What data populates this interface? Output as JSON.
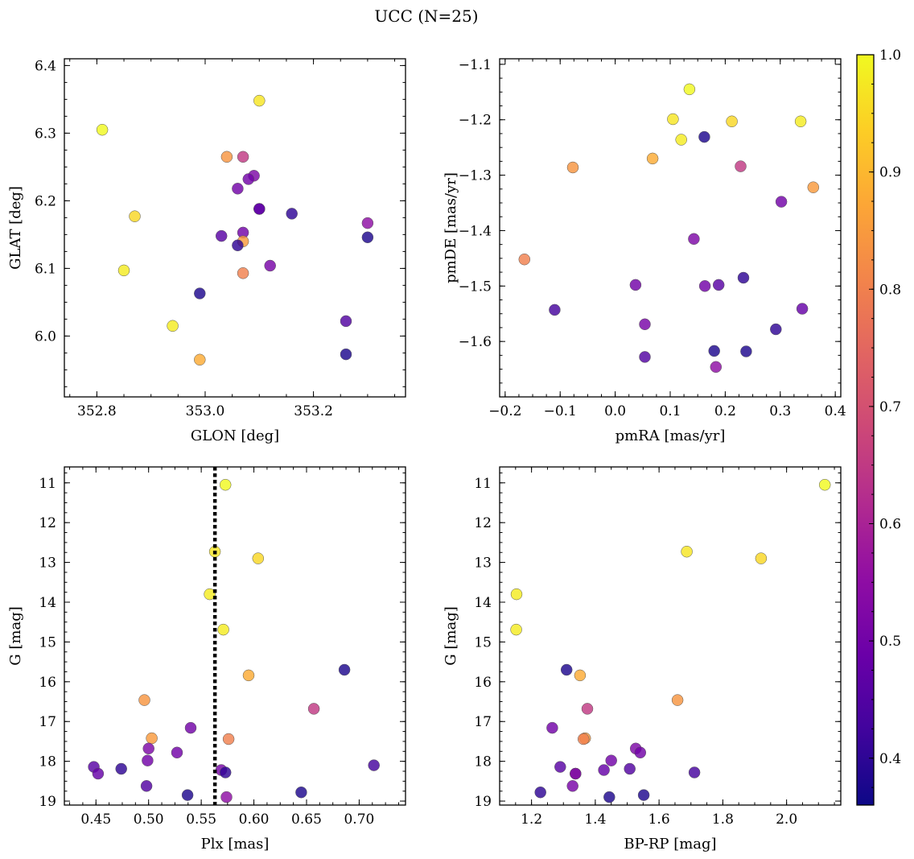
{
  "chart_data": {
    "title": "UCC (N=25)",
    "type": "scatter",
    "colorbar": {
      "colormap": "plasma",
      "range": [
        0.36,
        1.0
      ],
      "ticks": [
        0.4,
        0.5,
        0.6,
        0.7,
        0.8,
        0.9,
        1.0
      ],
      "tick_labels": [
        "0.4",
        "0.5",
        "0.6",
        "0.7",
        "0.8",
        "0.9",
        "1.0"
      ]
    },
    "panels": [
      {
        "id": "glon-glat",
        "xlabel": "GLON [deg]",
        "ylabel": "GLAT [deg]",
        "xlim": [
          352.74,
          353.37
        ],
        "ylim": [
          5.91,
          6.41
        ],
        "y_inverted": false,
        "xticks": [
          352.8,
          353.0,
          353.2
        ],
        "xtick_labels": [
          "352.8",
          "353.0",
          "353.2"
        ],
        "yticks": [
          6.0,
          6.1,
          6.2,
          6.3,
          6.4
        ],
        "ytick_labels": [
          "6.0",
          "6.1",
          "6.2",
          "6.3",
          "6.4"
        ],
        "x": [
          352.81,
          353.1,
          352.87,
          352.85,
          352.94,
          352.99,
          352.99,
          353.04,
          353.07,
          353.07,
          353.07,
          353.07,
          353.09,
          353.08,
          353.06,
          353.03,
          353.06,
          353.1,
          353.1,
          353.12,
          353.16,
          353.26,
          353.26,
          353.3,
          353.3
        ],
        "y": [
          6.305,
          6.348,
          6.177,
          6.097,
          6.015,
          6.063,
          5.965,
          6.265,
          6.265,
          6.153,
          6.14,
          6.093,
          6.237,
          6.232,
          6.218,
          6.148,
          6.134,
          6.188,
          6.188,
          6.104,
          6.181,
          6.022,
          5.973,
          6.146,
          6.167
        ]
      },
      {
        "id": "pmra-pmde",
        "xlabel": "pmRA [mas/yr]",
        "ylabel": "pmDE [mas/yr]",
        "xlim": [
          -0.21,
          0.41
        ],
        "ylim": [
          -1.7,
          -1.09
        ],
        "y_inverted": false,
        "xticks": [
          -0.2,
          -0.1,
          0.0,
          0.1,
          0.2,
          0.3,
          0.4
        ],
        "xtick_labels": [
          "−0.2",
          "−0.1",
          "0.0",
          "0.1",
          "0.2",
          "0.3",
          "0.4"
        ],
        "yticks": [
          -1.6,
          -1.5,
          -1.4,
          -1.3,
          -1.2,
          -1.1
        ],
        "ytick_labels": [
          "−1.6",
          "−1.5",
          "−1.4",
          "−1.3",
          "−1.2",
          "−1.1"
        ],
        "x": [
          0.135,
          0.105,
          0.212,
          0.337,
          0.12,
          0.162,
          0.068,
          -0.077,
          0.228,
          0.302,
          0.36,
          -0.165,
          0.143,
          0.037,
          0.163,
          0.188,
          0.233,
          -0.11,
          0.34,
          0.054,
          0.292,
          0.054,
          0.18,
          0.238,
          0.183
        ],
        "y": [
          -1.145,
          -1.199,
          -1.203,
          -1.203,
          -1.236,
          -1.231,
          -1.27,
          -1.286,
          -1.284,
          -1.348,
          -1.322,
          -1.452,
          -1.415,
          -1.498,
          -1.5,
          -1.498,
          -1.485,
          -1.543,
          -1.541,
          -1.569,
          -1.578,
          -1.628,
          -1.617,
          -1.618,
          -1.646
        ]
      },
      {
        "id": "plx-g",
        "xlabel": "Plx [mas]",
        "ylabel": "G [mag]",
        "xlim": [
          0.42,
          0.744
        ],
        "ylim": [
          19.1,
          10.6
        ],
        "y_inverted": true,
        "xticks": [
          0.45,
          0.5,
          0.55,
          0.6,
          0.65,
          0.7
        ],
        "xtick_labels": [
          "0.45",
          "0.50",
          "0.55",
          "0.60",
          "0.65",
          "0.70"
        ],
        "yticks": [
          11,
          12,
          13,
          14,
          15,
          16,
          17,
          18,
          19
        ],
        "ytick_labels": [
          "11",
          "12",
          "13",
          "14",
          "15",
          "16",
          "17",
          "18",
          "19"
        ],
        "vline": 0.563,
        "x": [
          0.573,
          0.563,
          0.604,
          0.558,
          0.571,
          0.686,
          0.595,
          0.496,
          0.657,
          0.54,
          0.503,
          0.576,
          0.5,
          0.527,
          0.499,
          0.448,
          0.474,
          0.714,
          0.452,
          0.569,
          0.573,
          0.498,
          0.645,
          0.537,
          0.574
        ],
        "y": [
          11.05,
          12.73,
          12.9,
          13.8,
          14.69,
          15.7,
          15.84,
          16.46,
          16.68,
          17.16,
          17.42,
          17.44,
          17.68,
          17.78,
          17.98,
          18.14,
          18.19,
          18.1,
          18.31,
          18.22,
          18.28,
          18.62,
          18.78,
          18.85,
          18.9
        ]
      },
      {
        "id": "bprp-g",
        "xlabel": "BP-RP [mag]",
        "ylabel": "G [mag]",
        "xlim": [
          1.1,
          2.17
        ],
        "ylim": [
          19.1,
          10.6
        ],
        "y_inverted": true,
        "xticks": [
          1.2,
          1.4,
          1.6,
          1.8,
          2.0
        ],
        "xtick_labels": [
          "1.2",
          "1.4",
          "1.6",
          "1.8",
          "2.0"
        ],
        "yticks": [
          11,
          12,
          13,
          14,
          15,
          16,
          17,
          18,
          19
        ],
        "ytick_labels": [
          "11",
          "12",
          "13",
          "14",
          "15",
          "16",
          "17",
          "18",
          "19"
        ],
        "x": [
          2.12,
          1.687,
          1.92,
          1.153,
          1.152,
          1.31,
          1.352,
          1.658,
          1.375,
          1.265,
          1.368,
          1.363,
          1.527,
          1.541,
          1.45,
          1.29,
          1.338,
          1.711,
          1.427,
          1.329,
          1.228,
          1.508,
          1.444,
          1.552,
          1.338
        ],
        "y": [
          11.05,
          12.73,
          12.9,
          13.8,
          14.69,
          15.7,
          15.84,
          16.46,
          16.68,
          17.16,
          17.42,
          17.44,
          17.68,
          17.78,
          17.98,
          18.14,
          18.31,
          18.28,
          18.22,
          18.62,
          18.78,
          18.19,
          18.9,
          18.85,
          18.31
        ]
      }
    ],
    "colors": [
      1.0,
      0.97,
      0.95,
      0.98,
      0.98,
      0.38,
      0.88,
      0.84,
      0.65,
      0.5,
      0.85,
      0.8,
      0.52,
      0.5,
      0.5,
      0.46,
      0.4,
      0.43,
      0.48,
      0.51,
      0.4,
      0.45,
      0.38,
      0.38,
      0.55
    ]
  }
}
